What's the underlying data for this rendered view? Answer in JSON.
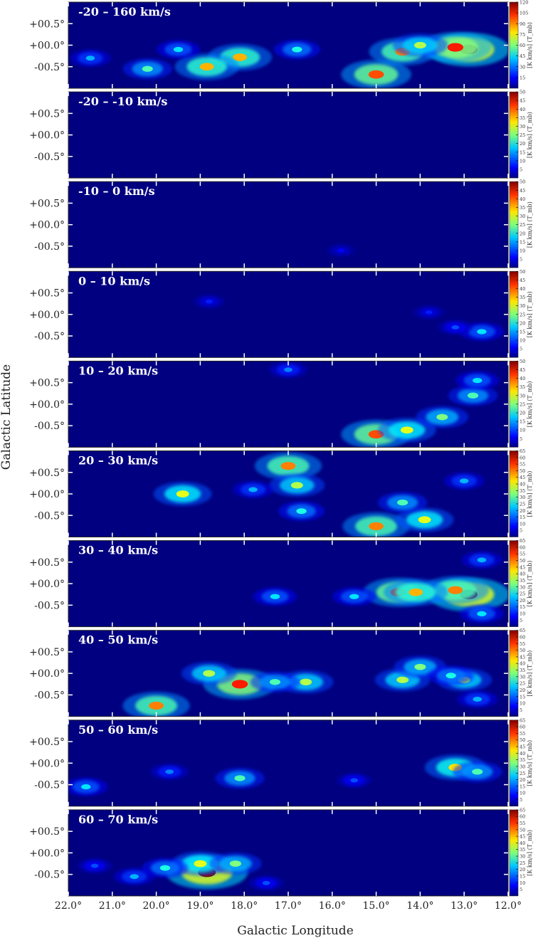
{
  "figure": {
    "xlabel": "Galactic Longitude",
    "ylabel": "Galactic Latitude",
    "x_ticks": [
      "22.0°",
      "21.0°",
      "20.0°",
      "19.0°",
      "18.0°",
      "17.0°",
      "16.0°",
      "15.0°",
      "14.0°",
      "13.0°",
      "12.0°"
    ],
    "y_ticks": [
      "+00.5°",
      "+00.0°",
      "-00.5°"
    ],
    "colorbar_label": "[K km/s] (T_mb)",
    "colormap": "jet",
    "background_color": "#000080"
  },
  "chart_data": {
    "type": "heatmap",
    "x_range_deg": [
      22.0,
      12.0
    ],
    "y_range_deg": [
      -1.0,
      1.0
    ],
    "panels": [
      {
        "label": "-20 – 160 km/s",
        "cbar_ticks": [
          15,
          30,
          45,
          60,
          75,
          90,
          105,
          120
        ],
        "cbar_max": 120,
        "hotspots": [
          {
            "l": 12.9,
            "b": -0.1,
            "level": 1.0
          },
          {
            "l": 13.2,
            "b": -0.05,
            "level": 0.85
          },
          {
            "l": 14.4,
            "b": -0.15,
            "level": 0.75
          },
          {
            "l": 14.0,
            "b": 0.0,
            "level": 0.55
          },
          {
            "l": 15.0,
            "b": -0.68,
            "level": 0.8
          },
          {
            "l": 18.1,
            "b": -0.28,
            "level": 0.7
          },
          {
            "l": 18.85,
            "b": -0.5,
            "level": 0.7
          },
          {
            "l": 16.8,
            "b": -0.1,
            "level": 0.4
          },
          {
            "l": 19.5,
            "b": -0.1,
            "level": 0.35
          },
          {
            "l": 20.2,
            "b": -0.55,
            "level": 0.45
          },
          {
            "l": 21.5,
            "b": -0.3,
            "level": 0.3
          }
        ]
      },
      {
        "label": "-20 – -10 km/s",
        "cbar_ticks": [
          5,
          10,
          15,
          20,
          25,
          30,
          35,
          40,
          45,
          50
        ],
        "cbar_max": 50,
        "hotspots": []
      },
      {
        "label": "-10 – 0 km/s",
        "cbar_ticks": [
          5,
          10,
          15,
          20,
          25,
          30,
          35,
          40,
          45,
          50
        ],
        "cbar_max": 50,
        "hotspots": [
          {
            "l": 15.8,
            "b": -0.6,
            "level": 0.12
          }
        ]
      },
      {
        "label": "0 – 10 km/s",
        "cbar_ticks": [
          5,
          10,
          15,
          20,
          25,
          30,
          35,
          40,
          45,
          50
        ],
        "cbar_max": 50,
        "hotspots": [
          {
            "l": 12.6,
            "b": -0.4,
            "level": 0.35
          },
          {
            "l": 13.2,
            "b": -0.3,
            "level": 0.2
          },
          {
            "l": 18.8,
            "b": 0.3,
            "level": 0.15
          },
          {
            "l": 13.8,
            "b": 0.05,
            "level": 0.15
          }
        ]
      },
      {
        "label": "10 – 20 km/s",
        "cbar_ticks": [
          5,
          10,
          15,
          20,
          25,
          30,
          35,
          40,
          45,
          50
        ],
        "cbar_max": 50,
        "hotspots": [
          {
            "l": 15.0,
            "b": -0.7,
            "level": 0.8
          },
          {
            "l": 14.3,
            "b": -0.6,
            "level": 0.6
          },
          {
            "l": 13.5,
            "b": -0.3,
            "level": 0.5
          },
          {
            "l": 12.8,
            "b": 0.2,
            "level": 0.45
          },
          {
            "l": 12.7,
            "b": 0.55,
            "level": 0.35
          },
          {
            "l": 17.0,
            "b": 0.8,
            "level": 0.25
          }
        ]
      },
      {
        "label": "20 – 30 km/s",
        "cbar_ticks": [
          5,
          10,
          15,
          20,
          25,
          30,
          35,
          40,
          45,
          50,
          55,
          60,
          65
        ],
        "cbar_max": 65,
        "hotspots": [
          {
            "l": 17.0,
            "b": 0.65,
            "level": 0.75
          },
          {
            "l": 16.8,
            "b": 0.2,
            "level": 0.55
          },
          {
            "l": 19.4,
            "b": 0.0,
            "level": 0.6
          },
          {
            "l": 15.0,
            "b": -0.75,
            "level": 0.75
          },
          {
            "l": 13.9,
            "b": -0.6,
            "level": 0.6
          },
          {
            "l": 14.4,
            "b": -0.2,
            "level": 0.45
          },
          {
            "l": 16.7,
            "b": -0.4,
            "level": 0.4
          },
          {
            "l": 17.8,
            "b": 0.1,
            "level": 0.3
          },
          {
            "l": 13.0,
            "b": 0.3,
            "level": 0.3
          }
        ]
      },
      {
        "label": "30 – 40 km/s",
        "cbar_ticks": [
          5,
          10,
          15,
          20,
          25,
          30,
          35,
          40,
          45,
          50,
          55,
          60,
          65
        ],
        "cbar_max": 65,
        "hotspots": [
          {
            "l": 12.9,
            "b": -0.25,
            "level": 1.0
          },
          {
            "l": 13.2,
            "b": -0.15,
            "level": 0.75
          },
          {
            "l": 14.5,
            "b": -0.2,
            "level": 0.8
          },
          {
            "l": 14.1,
            "b": -0.2,
            "level": 0.7
          },
          {
            "l": 15.5,
            "b": -0.3,
            "level": 0.35
          },
          {
            "l": 17.3,
            "b": -0.3,
            "level": 0.35
          },
          {
            "l": 12.6,
            "b": 0.55,
            "level": 0.3
          },
          {
            "l": 12.6,
            "b": -0.7,
            "level": 0.35
          }
        ]
      },
      {
        "label": "40 – 50 km/s",
        "cbar_ticks": [
          5,
          10,
          15,
          20,
          25,
          30,
          35,
          40,
          45,
          50,
          55,
          60,
          65
        ],
        "cbar_max": 65,
        "hotspots": [
          {
            "l": 18.1,
            "b": -0.25,
            "level": 0.85
          },
          {
            "l": 20.0,
            "b": -0.75,
            "level": 0.75
          },
          {
            "l": 18.8,
            "b": 0.0,
            "level": 0.55
          },
          {
            "l": 16.6,
            "b": -0.2,
            "level": 0.55
          },
          {
            "l": 17.3,
            "b": -0.2,
            "level": 0.45
          },
          {
            "l": 14.4,
            "b": -0.15,
            "level": 0.55
          },
          {
            "l": 14.0,
            "b": 0.15,
            "level": 0.5
          },
          {
            "l": 13.0,
            "b": -0.15,
            "level": 0.55
          },
          {
            "l": 13.3,
            "b": -0.05,
            "level": 0.4
          },
          {
            "l": 12.7,
            "b": -0.6,
            "level": 0.3
          }
        ]
      },
      {
        "label": "50 – 60 km/s",
        "cbar_ticks": [
          5,
          10,
          15,
          20,
          25,
          30,
          35,
          40,
          45,
          50,
          55,
          60,
          65
        ],
        "cbar_max": 65,
        "hotspots": [
          {
            "l": 13.2,
            "b": -0.1,
            "level": 0.65
          },
          {
            "l": 12.7,
            "b": -0.2,
            "level": 0.45
          },
          {
            "l": 18.1,
            "b": -0.35,
            "level": 0.45
          },
          {
            "l": 21.6,
            "b": -0.55,
            "level": 0.35
          },
          {
            "l": 19.7,
            "b": -0.2,
            "level": 0.25
          },
          {
            "l": 15.5,
            "b": -0.4,
            "level": 0.2
          }
        ]
      },
      {
        "label": "60 – 70 km/s",
        "cbar_ticks": [
          5,
          10,
          15,
          20,
          25,
          30,
          35,
          40,
          45,
          50,
          55,
          60,
          65
        ],
        "cbar_max": 65,
        "hotspots": [
          {
            "l": 18.85,
            "b": -0.45,
            "level": 1.0
          },
          {
            "l": 19.0,
            "b": -0.25,
            "level": 0.6
          },
          {
            "l": 18.2,
            "b": -0.25,
            "level": 0.5
          },
          {
            "l": 19.8,
            "b": -0.35,
            "level": 0.4
          },
          {
            "l": 20.5,
            "b": -0.55,
            "level": 0.3
          },
          {
            "l": 21.4,
            "b": -0.3,
            "level": 0.2
          },
          {
            "l": 17.5,
            "b": -0.7,
            "level": 0.2
          }
        ]
      }
    ]
  }
}
